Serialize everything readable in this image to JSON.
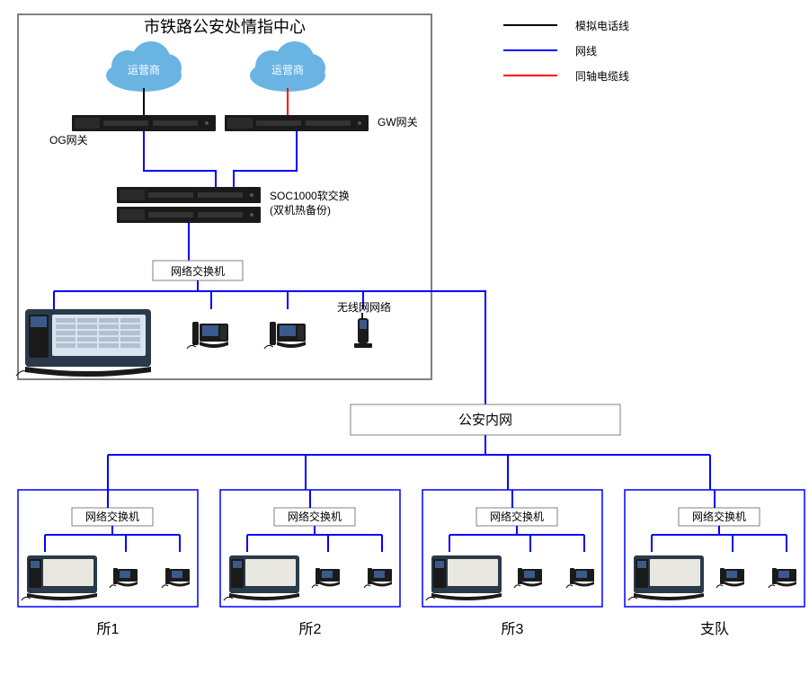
{
  "title": "市铁路公安处情指中心",
  "clouds": {
    "left": "运营商",
    "right": "运营商"
  },
  "gateways": {
    "left": "OG网关",
    "right": "GW网关"
  },
  "soc": {
    "name": "SOC1000软交换",
    "sub": "(双机热备份)"
  },
  "switch_label": "网络交换机",
  "wifi_label": "无线网网络",
  "intranet": "公安内网",
  "stations": [
    "所1",
    "所2",
    "所3",
    "支队"
  ],
  "legend": [
    {
      "color": "#000000",
      "label": "模拟电话线"
    },
    {
      "color": "#0000ff",
      "label": "网线"
    },
    {
      "color": "#ff0000",
      "label": "同轴电缆线"
    }
  ],
  "colors": {
    "blue": "#0000ff",
    "red": "#ff0000",
    "black": "#000000",
    "gray": "#808080",
    "cloud": "#6ab4e4",
    "rack": "#1a1a1a"
  }
}
